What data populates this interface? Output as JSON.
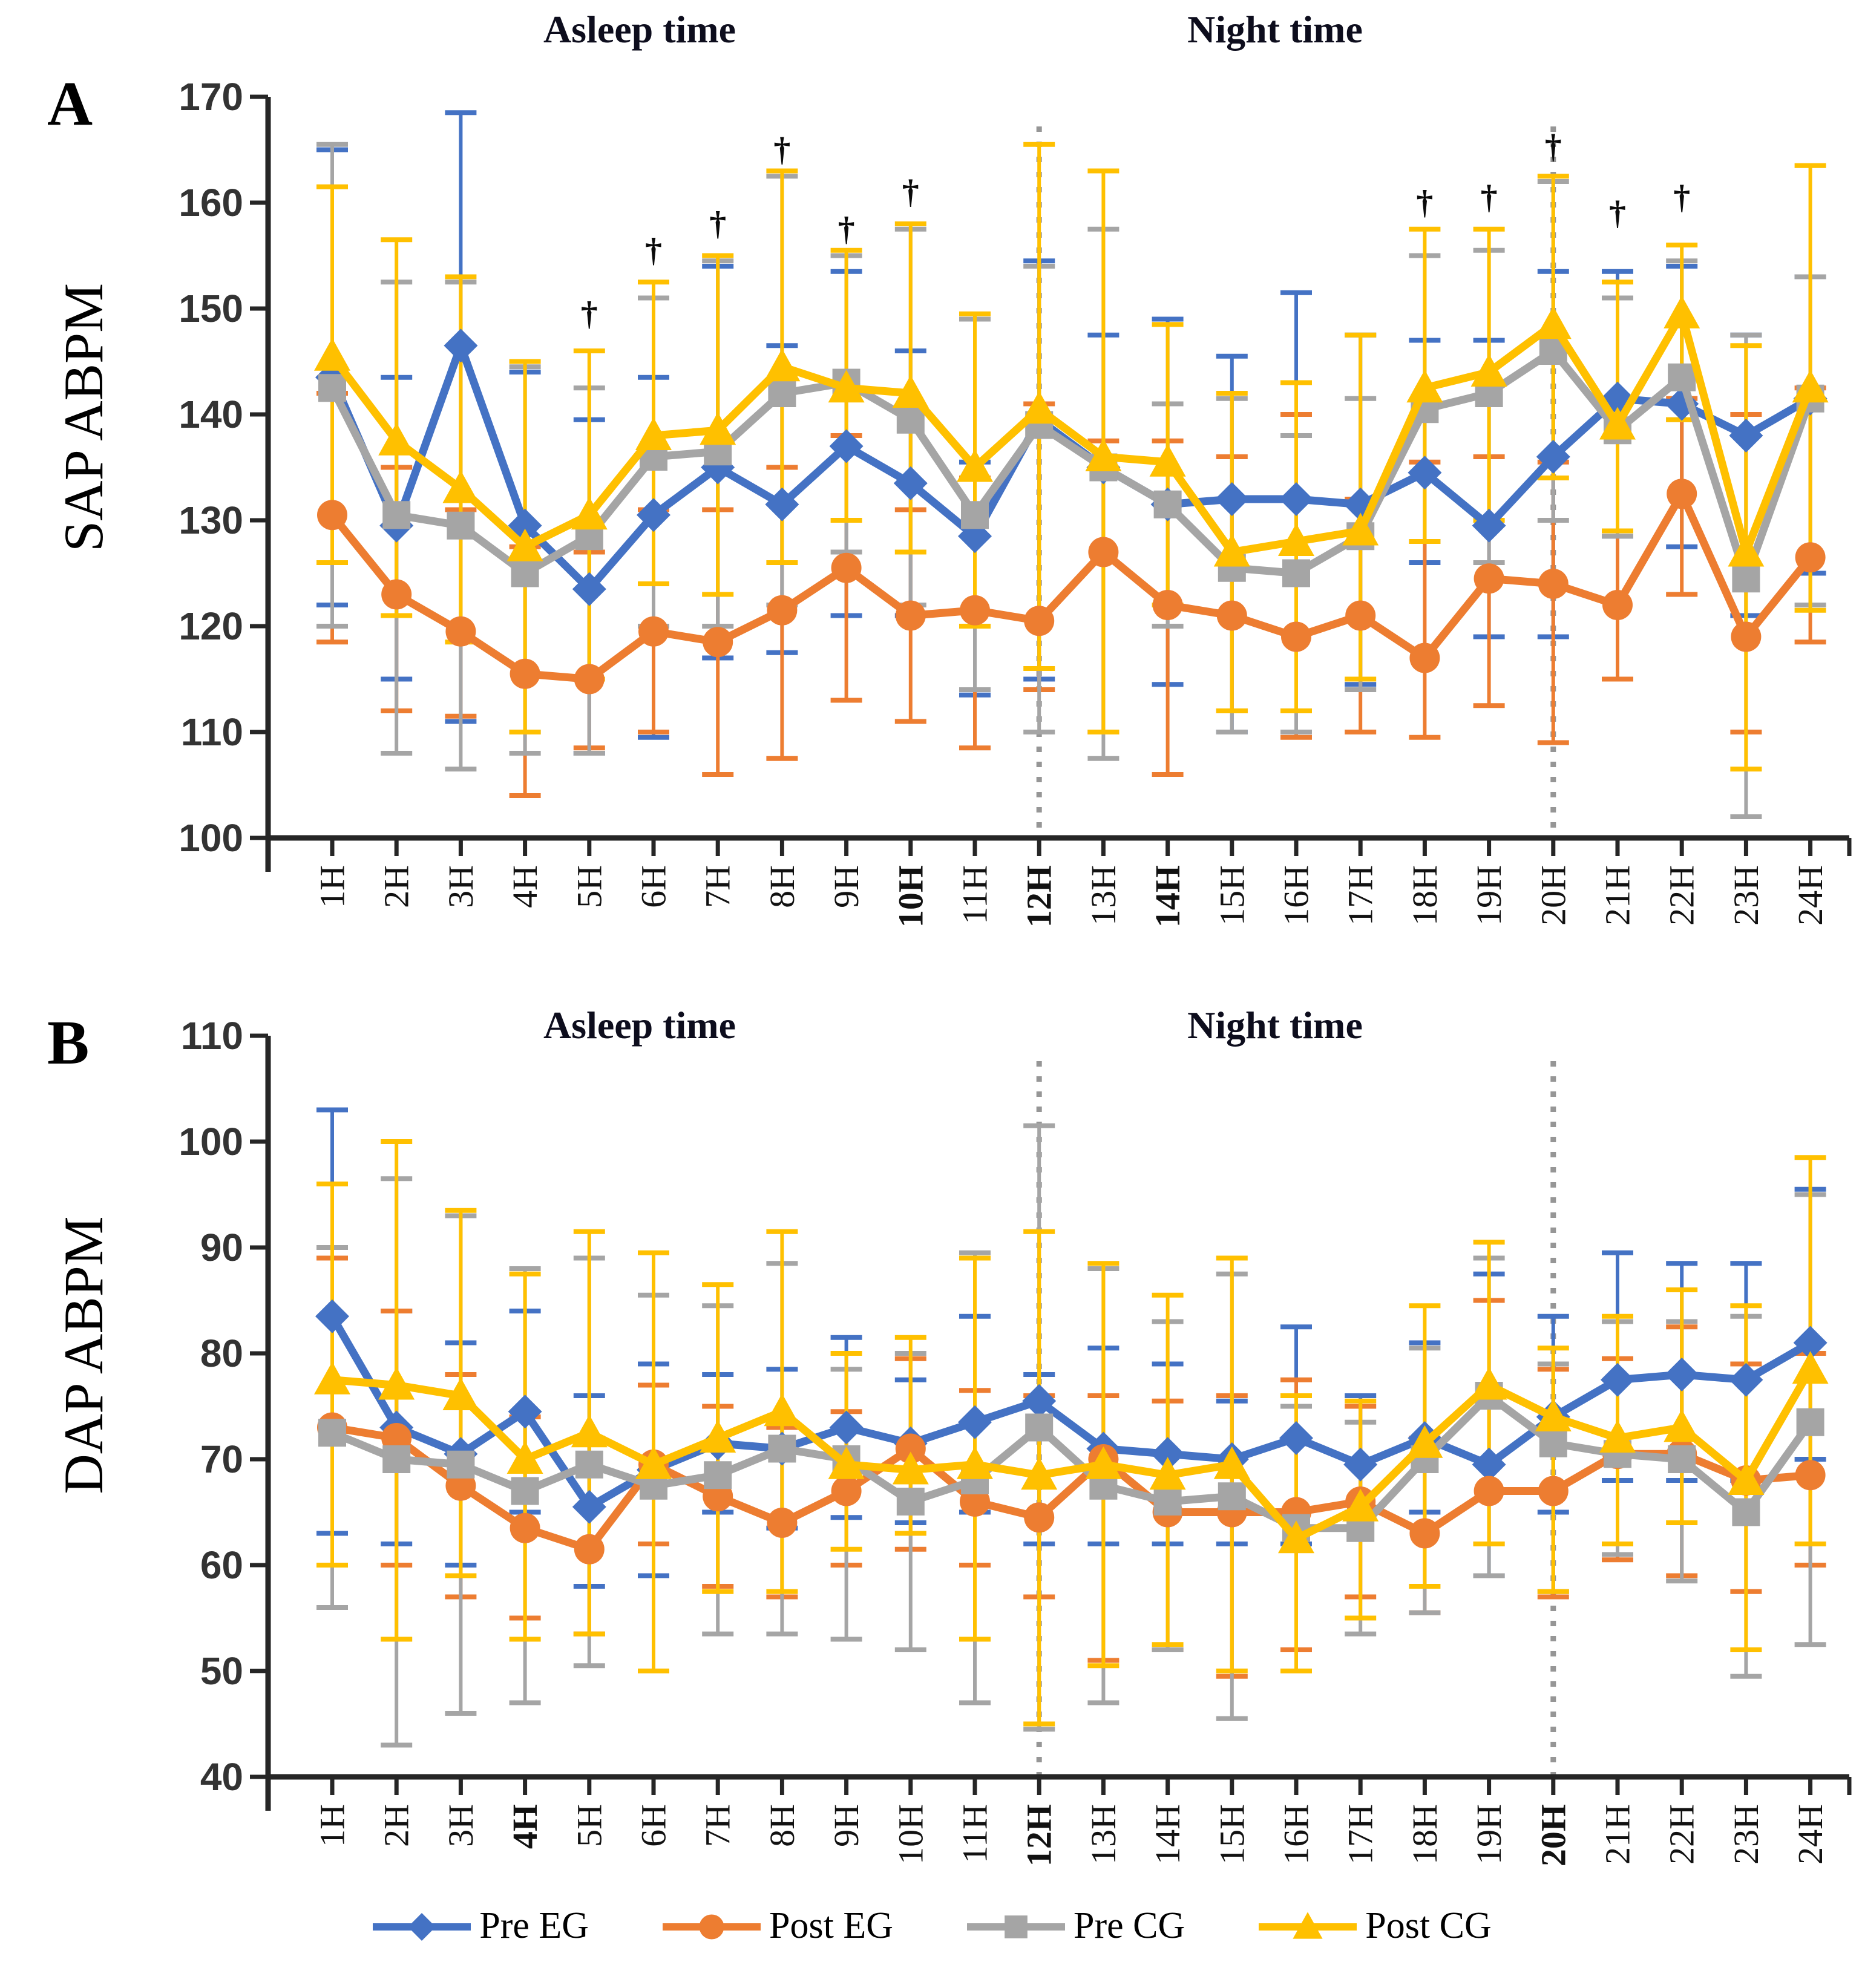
{
  "chart_data": [
    {
      "id": "A",
      "type": "line",
      "panel_label": "A",
      "ylabel": "SAP ABPM",
      "ylim": [
        100,
        170
      ],
      "ytick_step": 10,
      "y_tick_labels": [
        100,
        110,
        120,
        130,
        140,
        150,
        160,
        170
      ],
      "x_categories": [
        "1H",
        "2H",
        "3H",
        "4H",
        "5H",
        "6H",
        "7H",
        "8H",
        "9H",
        "10H",
        "11H",
        "12H",
        "13H",
        "14H",
        "15H",
        "16H",
        "17H",
        "18H",
        "19H",
        "20H",
        "21H",
        "22H",
        "23H",
        "24H"
      ],
      "bold_x_labels": [
        "10H",
        "12H",
        "14H"
      ],
      "grid": "off",
      "section_labels": [
        {
          "text": "Asleep time"
        },
        {
          "text": "Night time"
        }
      ],
      "dotted_line_hours": [
        12,
        20
      ],
      "daggers": [
        {
          "hour": 5,
          "value": 149.5
        },
        {
          "hour": 6,
          "value": 155.5
        },
        {
          "hour": 7,
          "value": 158
        },
        {
          "hour": 8,
          "value": 165
        },
        {
          "hour": 9,
          "value": 157.5
        },
        {
          "hour": 10,
          "value": 161
        },
        {
          "hour": 18,
          "value": 160
        },
        {
          "hour": 19,
          "value": 160.5
        },
        {
          "hour": 20,
          "value": 165.3
        },
        {
          "hour": 21,
          "value": 159
        },
        {
          "hour": 22,
          "value": 160.5
        }
      ],
      "series": [
        {
          "name": "Pre EG",
          "color": "#4472C4",
          "marker": "diamond",
          "values": [
            143.5,
            129.5,
            146.5,
            129.5,
            123.5,
            130.5,
            135,
            131.5,
            137,
            133.5,
            128.5,
            139.5,
            135,
            131.5,
            132,
            132,
            131.5,
            134.5,
            129.5,
            136,
            141.5,
            141,
            138,
            141.5
          ],
          "upper": [
            165,
            143.5,
            168.5,
            144,
            139.5,
            143.5,
            154,
            146.5,
            153.5,
            146,
            135.5,
            154.5,
            147.5,
            149,
            145.5,
            151.5,
            147.5,
            147,
            147,
            153.5,
            153.5,
            154,
            147.5,
            153
          ],
          "lower": [
            122,
            115,
            111,
            110,
            108,
            109.5,
            117,
            117.5,
            121,
            121,
            113.5,
            115,
            110,
            114.5,
            110,
            112,
            114.5,
            126,
            119,
            119,
            128.5,
            127.5,
            121,
            125
          ]
        },
        {
          "name": "Post EG",
          "color": "#ED7D31",
          "marker": "circle",
          "values": [
            130.5,
            123,
            119.5,
            115.5,
            115,
            119.5,
            118.5,
            121.5,
            125.5,
            121,
            121.5,
            120.5,
            127,
            122,
            121,
            119,
            121,
            117,
            124.5,
            124,
            122,
            132.5,
            119,
            126.5
          ],
          "upper": [
            142,
            135,
            131,
            127.5,
            127,
            131,
            131,
            135,
            138,
            131,
            134,
            141,
            137.5,
            137.5,
            136,
            140,
            132,
            135.5,
            136,
            135.5,
            129,
            141.5,
            140,
            142.5
          ],
          "lower": [
            118.5,
            112,
            111.5,
            104,
            108.5,
            110,
            106,
            107.5,
            113,
            111,
            108.5,
            114,
            110,
            106,
            112,
            109.5,
            110,
            109.5,
            112.5,
            109,
            115,
            123,
            110,
            118.5
          ]
        },
        {
          "name": "Pre CG",
          "color": "#A5A5A5",
          "marker": "square",
          "values": [
            142.5,
            130.5,
            129.5,
            125,
            128.5,
            136,
            136.5,
            142,
            143,
            139.5,
            130.5,
            139,
            135,
            131.5,
            125.5,
            125,
            128.5,
            140.5,
            142,
            146,
            138.5,
            143.5,
            124.5,
            141.5
          ],
          "upper": [
            165.5,
            152.5,
            152.5,
            144.5,
            142.5,
            151,
            154.5,
            162.5,
            155,
            157.5,
            149,
            154,
            157.5,
            141,
            141.5,
            138,
            141.5,
            155,
            155.5,
            162,
            151,
            154.5,
            147.5,
            153
          ],
          "lower": [
            120,
            108,
            106.5,
            108,
            108,
            120,
            120,
            122,
            127,
            122,
            114,
            110,
            107.5,
            120,
            110,
            110,
            114,
            128,
            126,
            130,
            128.5,
            139.5,
            102,
            122
          ]
        },
        {
          "name": "Post CG",
          "color": "#FFC000",
          "marker": "triangle",
          "values": [
            145.5,
            137.5,
            133,
            127.5,
            130.5,
            138,
            138.5,
            144.5,
            142.5,
            142,
            135,
            140.5,
            136,
            135.5,
            127,
            128,
            129,
            142.5,
            144,
            148.5,
            139,
            149.5,
            127,
            142.5
          ],
          "upper": [
            161.5,
            156.5,
            153,
            145,
            146,
            152.5,
            155,
            163,
            155.5,
            158,
            149.5,
            165.5,
            163,
            148.5,
            142,
            143,
            147.5,
            157.5,
            157.5,
            162.5,
            152.5,
            156,
            146.5,
            163.5
          ],
          "lower": [
            126,
            121,
            118.5,
            110,
            115,
            124,
            123,
            126,
            130,
            127,
            120,
            116,
            110,
            122,
            112,
            112,
            115,
            128,
            130,
            134,
            129,
            139.5,
            106.5,
            121.5
          ]
        }
      ]
    },
    {
      "id": "B",
      "type": "line",
      "panel_label": "B",
      "ylabel": "DAP ABPM",
      "ylim": [
        40,
        110
      ],
      "ytick_step": 10,
      "y_tick_labels": [
        40,
        50,
        60,
        70,
        80,
        90,
        100,
        110
      ],
      "x_categories": [
        "1H",
        "2H",
        "3H",
        "4H",
        "5H",
        "6H",
        "7H",
        "8H",
        "9H",
        "10H",
        "11H",
        "12H",
        "13H",
        "14H",
        "15H",
        "16H",
        "17H",
        "18H",
        "19H",
        "20H",
        "21H",
        "22H",
        "23H",
        "24H"
      ],
      "bold_x_labels": [
        "4H",
        "12H",
        "20H"
      ],
      "grid": "off",
      "section_labels": [
        {
          "text": "Asleep time"
        },
        {
          "text": "Night time"
        }
      ],
      "dotted_line_hours": [
        12,
        20
      ],
      "daggers": [],
      "series": [
        {
          "name": "Pre EG",
          "color": "#4472C4",
          "marker": "diamond",
          "values": [
            83.5,
            73,
            70.5,
            74.5,
            65.5,
            69,
            71.5,
            71,
            73,
            71.5,
            73.5,
            75.5,
            71,
            70.5,
            70,
            72,
            69.5,
            72,
            69.5,
            74,
            77.5,
            78,
            77.5,
            81
          ],
          "upper": [
            103,
            84,
            81,
            84,
            76,
            79,
            78,
            78.5,
            81.5,
            77.5,
            83.5,
            78,
            80.5,
            79,
            75.5,
            82.5,
            76,
            81,
            87.5,
            83.5,
            89.5,
            88.5,
            88.5,
            95.5
          ],
          "lower": [
            63,
            62,
            60,
            65,
            58,
            59,
            65,
            63.5,
            64.5,
            64,
            65,
            62,
            62,
            62,
            62,
            62,
            65,
            65,
            59,
            65,
            68,
            68,
            68,
            70
          ]
        },
        {
          "name": "Post EG",
          "color": "#ED7D31",
          "marker": "circle",
          "values": [
            73,
            72,
            67.5,
            63.5,
            61.5,
            69.5,
            66.5,
            64,
            67,
            71,
            66,
            64.5,
            70,
            65,
            65,
            65,
            66,
            63,
            67,
            67,
            70.5,
            70.5,
            68,
            68.5
          ],
          "upper": [
            89,
            84,
            78,
            74,
            72,
            77,
            75,
            73,
            74.5,
            79.5,
            76.5,
            76,
            76,
            75.5,
            76,
            77.5,
            75,
            72,
            85,
            78.5,
            79.5,
            82.5,
            79,
            80
          ],
          "lower": [
            60,
            60,
            57,
            55,
            53.5,
            62,
            58,
            57,
            60,
            61.5,
            60,
            57,
            51,
            52,
            49.5,
            52,
            57,
            55.5,
            62,
            57,
            60.5,
            59,
            57.5,
            60
          ]
        },
        {
          "name": "Pre CG",
          "color": "#A5A5A5",
          "marker": "square",
          "values": [
            72.5,
            70,
            69.5,
            67,
            69.5,
            67.5,
            68.5,
            71,
            70,
            66,
            68,
            73,
            67.5,
            66,
            66.5,
            63.5,
            63.5,
            70,
            76,
            71.5,
            70.5,
            70,
            65,
            73.5
          ],
          "upper": [
            90,
            96.5,
            93,
            88,
            89,
            85.5,
            84.5,
            88.5,
            78.5,
            80,
            89.5,
            101.5,
            88,
            83,
            87.5,
            75,
            73.5,
            80.5,
            89,
            79,
            83,
            83,
            83.5,
            95
          ],
          "lower": [
            56,
            43,
            46,
            47,
            50.5,
            50,
            53.5,
            53.5,
            53,
            52,
            47,
            44.5,
            47,
            52,
            45.5,
            50,
            53.5,
            55.5,
            59,
            57.5,
            61,
            58.5,
            49.5,
            52.5
          ]
        },
        {
          "name": "Post CG",
          "color": "#FFC000",
          "marker": "triangle",
          "values": [
            77.5,
            77,
            76,
            70,
            72.5,
            69.5,
            72,
            74.5,
            69.5,
            69,
            69.5,
            68.5,
            69.5,
            68.5,
            69.5,
            62.5,
            65.5,
            71.5,
            77,
            74,
            72,
            73,
            68,
            78.5
          ],
          "upper": [
            96,
            100,
            93.5,
            87.5,
            91.5,
            89.5,
            86.5,
            91.5,
            80,
            81.5,
            89,
            91.5,
            88.5,
            85.5,
            89,
            76,
            75.5,
            84.5,
            90.5,
            80.5,
            83.5,
            86,
            84.5,
            98.5
          ],
          "lower": [
            60,
            53,
            59,
            53,
            53.5,
            50,
            57.5,
            57.5,
            61.5,
            63,
            53,
            45,
            50.5,
            52.5,
            50,
            50,
            55,
            58,
            62,
            57.5,
            62,
            64,
            52,
            62
          ]
        }
      ]
    }
  ],
  "legend": {
    "position": "bottom",
    "items": [
      {
        "label": "Pre EG",
        "color": "#4472C4",
        "marker": "diamond"
      },
      {
        "label": "Post EG",
        "color": "#ED7D31",
        "marker": "circle"
      },
      {
        "label": "Pre CG",
        "color": "#A5A5A5",
        "marker": "square"
      },
      {
        "label": "Post CG",
        "color": "#FFC000",
        "marker": "triangle"
      }
    ]
  },
  "style": {
    "axis_color": "#262626",
    "tick_label_color": "#333333",
    "dotted_line_color": "#969696",
    "dagger_glyph": "†"
  }
}
